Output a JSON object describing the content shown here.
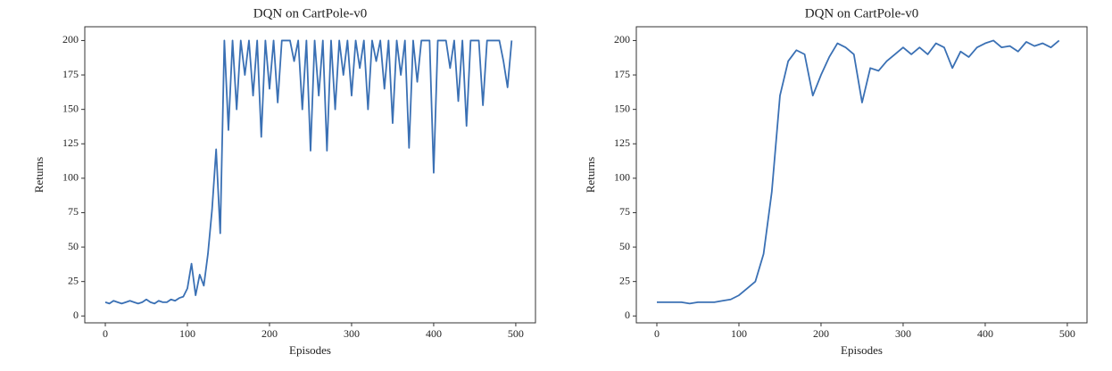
{
  "chart_data": [
    {
      "type": "line",
      "title": "DQN on CartPole-v0",
      "xlabel": "Episodes",
      "ylabel": "Returns",
      "color": "#3a70b4",
      "xlim": [
        -25,
        524
      ],
      "ylim": [
        -5,
        210
      ],
      "xticks": [
        0,
        100,
        200,
        300,
        400,
        500
      ],
      "yticks": [
        0,
        25,
        50,
        75,
        100,
        125,
        150,
        175,
        200
      ],
      "x": [
        0,
        5,
        10,
        15,
        20,
        25,
        30,
        35,
        40,
        45,
        50,
        55,
        60,
        65,
        70,
        75,
        80,
        85,
        90,
        95,
        100,
        105,
        110,
        115,
        120,
        125,
        130,
        135,
        140,
        145,
        150,
        155,
        160,
        165,
        170,
        175,
        180,
        185,
        190,
        195,
        200,
        205,
        210,
        215,
        220,
        225,
        230,
        235,
        240,
        245,
        250,
        255,
        260,
        265,
        270,
        275,
        280,
        285,
        290,
        295,
        300,
        305,
        310,
        315,
        320,
        325,
        330,
        335,
        340,
        345,
        350,
        355,
        360,
        365,
        370,
        375,
        380,
        385,
        390,
        395,
        400,
        405,
        410,
        415,
        420,
        425,
        430,
        435,
        440,
        445,
        450,
        455,
        460,
        465,
        470,
        475,
        480,
        485,
        490,
        495
      ],
      "values": [
        10,
        9,
        11,
        10,
        9,
        10,
        11,
        10,
        9,
        10,
        12,
        10,
        9,
        11,
        10,
        10,
        12,
        11,
        13,
        14,
        20,
        38,
        15,
        30,
        22,
        45,
        77,
        121,
        60,
        200,
        135,
        200,
        150,
        200,
        175,
        200,
        160,
        200,
        130,
        200,
        165,
        200,
        155,
        200,
        200,
        200,
        185,
        200,
        150,
        200,
        120,
        200,
        160,
        200,
        120,
        200,
        150,
        200,
        175,
        200,
        160,
        200,
        180,
        200,
        150,
        200,
        185,
        200,
        165,
        200,
        140,
        200,
        175,
        200,
        122,
        200,
        170,
        200,
        200,
        200,
        104,
        200,
        200,
        200,
        180,
        200,
        156,
        200,
        138,
        200,
        200,
        200,
        153,
        200,
        200,
        200,
        200,
        185,
        166,
        200
      ]
    },
    {
      "type": "line",
      "title": "DQN on CartPole-v0",
      "xlabel": "Episodes",
      "ylabel": "Returns",
      "color": "#3a70b4",
      "xlim": [
        -25,
        524
      ],
      "ylim": [
        -5,
        210
      ],
      "xticks": [
        0,
        100,
        200,
        300,
        400,
        500
      ],
      "yticks": [
        0,
        25,
        50,
        75,
        100,
        125,
        150,
        175,
        200
      ],
      "x": [
        0,
        10,
        20,
        30,
        40,
        50,
        60,
        70,
        80,
        90,
        100,
        110,
        120,
        130,
        140,
        150,
        160,
        170,
        180,
        190,
        200,
        210,
        220,
        230,
        240,
        250,
        260,
        270,
        280,
        290,
        300,
        310,
        320,
        330,
        340,
        350,
        360,
        370,
        380,
        390,
        400,
        410,
        420,
        430,
        440,
        450,
        460,
        470,
        480,
        490
      ],
      "values": [
        10,
        10,
        10,
        10,
        9,
        10,
        10,
        10,
        11,
        12,
        15,
        20,
        25,
        45,
        90,
        160,
        185,
        193,
        190,
        160,
        175,
        188,
        198,
        195,
        190,
        155,
        180,
        178,
        185,
        190,
        195,
        190,
        195,
        190,
        198,
        195,
        180,
        192,
        188,
        195,
        198,
        200,
        195,
        196,
        192,
        199,
        196,
        198,
        195,
        200
      ]
    }
  ]
}
